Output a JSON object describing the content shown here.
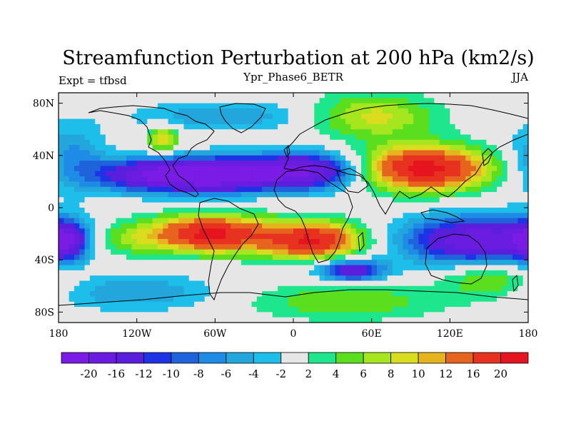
{
  "title": "Streamfunction Perturbation at 200 hPa (km2/s)",
  "left_label": "Expt = tfbsd",
  "center_label": "Ypr_Phase6_BETR",
  "right_label": "JJA",
  "lat_labels": [
    {
      "value": 80,
      "text": "80N"
    },
    {
      "value": 40,
      "text": "40N"
    },
    {
      "value": 0,
      "text": "0"
    },
    {
      "value": -40,
      "text": "40S"
    },
    {
      "value": -80,
      "text": "80S"
    }
  ],
  "lon_labels": [
    {
      "value": -180,
      "text": "180"
    },
    {
      "value": -120,
      "text": "120W"
    },
    {
      "value": -60,
      "text": "60W"
    },
    {
      "value": 0,
      "text": "0"
    },
    {
      "value": 60,
      "text": "60E"
    },
    {
      "value": 120,
      "text": "120E"
    },
    {
      "value": 180,
      "text": "180"
    }
  ],
  "colorbar": {
    "colors": [
      "#7a1be6",
      "#6a1ce0",
      "#5a1fdc",
      "#1e32e6",
      "#1f63dc",
      "#1e8ce6",
      "#22a6dc",
      "#1ebeea",
      "#e6e6e6",
      "#1ee68c",
      "#5ade1e",
      "#a6e61e",
      "#dadc1e",
      "#e6b41e",
      "#e6641e",
      "#e6321e",
      "#e6141e"
    ],
    "labels": [
      "-20",
      "-16",
      "-12",
      "-10",
      "-8",
      "-6",
      "-4",
      "-2",
      "2",
      "4",
      "6",
      "8",
      "10",
      "12",
      "16",
      "20"
    ]
  },
  "field": {
    "anomalies": [
      {
        "lon": -110,
        "lat": 25,
        "amp": -18,
        "sx": 30,
        "sy": 9
      },
      {
        "lon": -55,
        "lat": 25,
        "amp": -22,
        "sx": 30,
        "sy": 9
      },
      {
        "lon": 10,
        "lat": 28,
        "amp": -20,
        "sx": 30,
        "sy": 10
      },
      {
        "lon": -170,
        "lat": 38,
        "amp": -7,
        "sx": 18,
        "sy": 18
      },
      {
        "lon": -100,
        "lat": 52,
        "amp": 11,
        "sx": 8,
        "sy": 7
      },
      {
        "lon": 100,
        "lat": 30,
        "amp": 22,
        "sx": 36,
        "sy": 12
      },
      {
        "lon": 60,
        "lat": 70,
        "amp": 9,
        "sx": 35,
        "sy": 12
      },
      {
        "lon": -50,
        "lat": 70,
        "amp": -6,
        "sx": 50,
        "sy": 8
      },
      {
        "lon": -65,
        "lat": -20,
        "amp": 21,
        "sx": 32,
        "sy": 10
      },
      {
        "lon": 15,
        "lat": -25,
        "amp": 20,
        "sx": 28,
        "sy": 10
      },
      {
        "lon": -135,
        "lat": -25,
        "amp": 6,
        "sx": 22,
        "sy": 10
      },
      {
        "lon": -175,
        "lat": -25,
        "amp": -16,
        "sx": 12,
        "sy": 10
      },
      {
        "lon": 140,
        "lat": -25,
        "amp": -19,
        "sx": 40,
        "sy": 13
      },
      {
        "lon": 45,
        "lat": -48,
        "amp": -16,
        "sx": 18,
        "sy": 6
      },
      {
        "lon": -120,
        "lat": -65,
        "amp": -6,
        "sx": 45,
        "sy": 10
      },
      {
        "lon": 40,
        "lat": -72,
        "amp": 6,
        "sx": 55,
        "sy": 10
      },
      {
        "lon": 150,
        "lat": -55,
        "amp": 7,
        "sx": 25,
        "sy": 10
      }
    ]
  }
}
